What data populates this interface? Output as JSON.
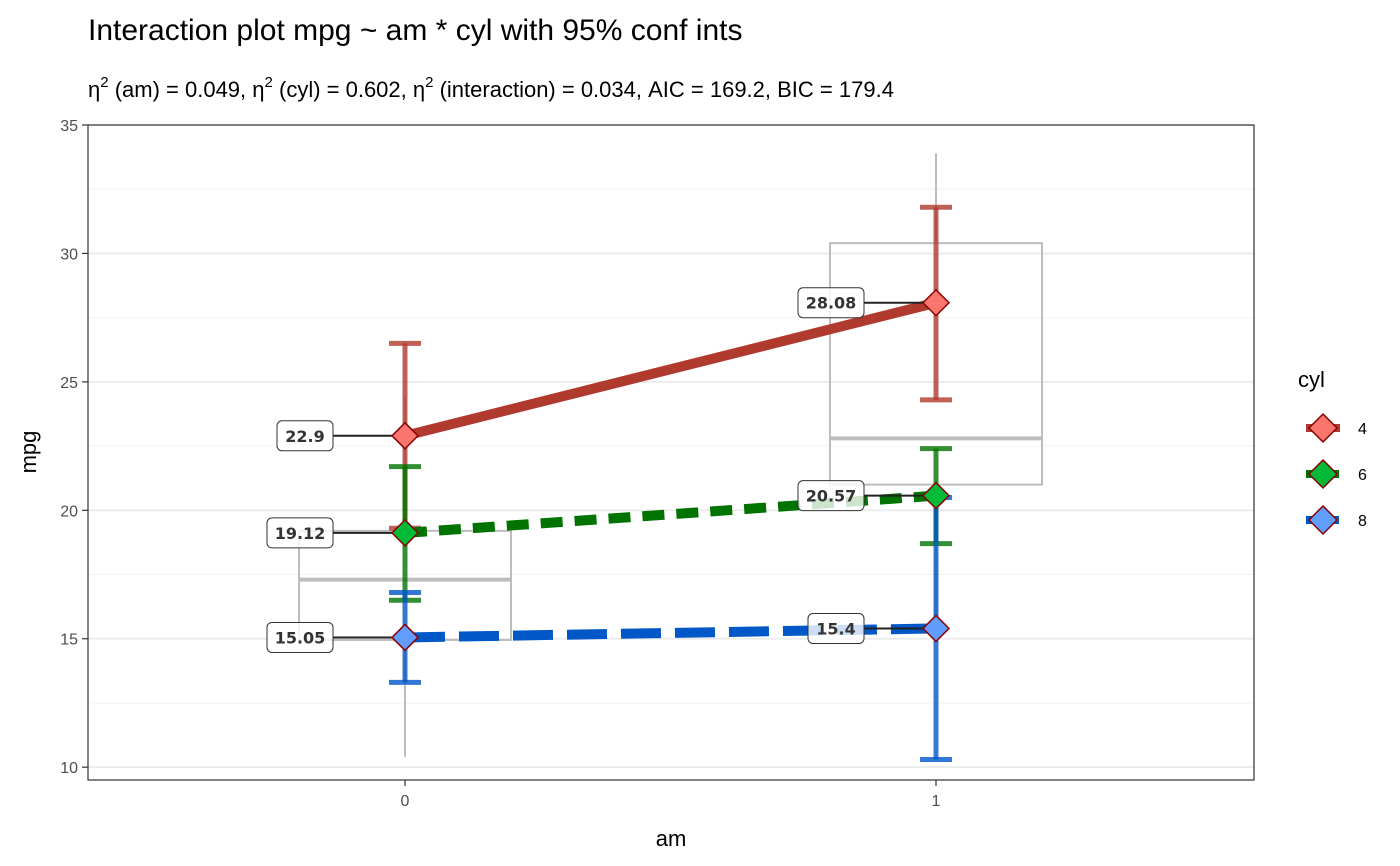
{
  "chart_data": {
    "type": "line",
    "title": "Interaction plot  mpg ~ am * cyl with 95% conf ints",
    "subtitle": {
      "sym": "η",
      "sup": "2",
      "part1": " (am) = 0.049, ",
      "part2": " (cyl) = 0.602, ",
      "part3": " (interaction) = 0.034, AIC = 169.2, BIC = 179.4"
    },
    "xlabel": "am",
    "ylabel": "mpg",
    "categories": [
      "0",
      "1"
    ],
    "ylim": [
      9.5,
      35
    ],
    "yticks": [
      10,
      15,
      20,
      25,
      30,
      35
    ],
    "grid": true,
    "legend": {
      "title": "cyl",
      "placement": "right"
    },
    "series": [
      {
        "name": "4",
        "color": "#b03a2e",
        "fill": "#f8766d",
        "dash": "solid",
        "values": [
          22.9,
          28.08
        ],
        "labels": [
          "22.9",
          "28.08"
        ],
        "ci": [
          [
            19.3,
            26.5
          ],
          [
            24.3,
            31.8
          ]
        ]
      },
      {
        "name": "6",
        "color": "#007300",
        "fill": "#00ba38",
        "dash": "dashed",
        "values": [
          19.12,
          20.57
        ],
        "labels": [
          "19.12",
          "20.57"
        ],
        "ci": [
          [
            16.5,
            21.7
          ],
          [
            18.7,
            22.4
          ]
        ]
      },
      {
        "name": "8",
        "color": "#0057c8",
        "fill": "#619cff",
        "dash": "longdash",
        "values": [
          15.05,
          15.4
        ],
        "labels": [
          "15.05",
          "15.4"
        ],
        "ci": [
          [
            13.3,
            16.8
          ],
          [
            10.3,
            20.5
          ]
        ]
      }
    ],
    "boxplots": [
      {
        "category": "0",
        "min": 10.4,
        "q1": 14.95,
        "median": 17.3,
        "q3": 19.2,
        "max": 24.4
      },
      {
        "category": "1",
        "min": 15.0,
        "q1": 21.0,
        "median": 22.8,
        "q3": 30.4,
        "max": 33.9
      }
    ]
  }
}
